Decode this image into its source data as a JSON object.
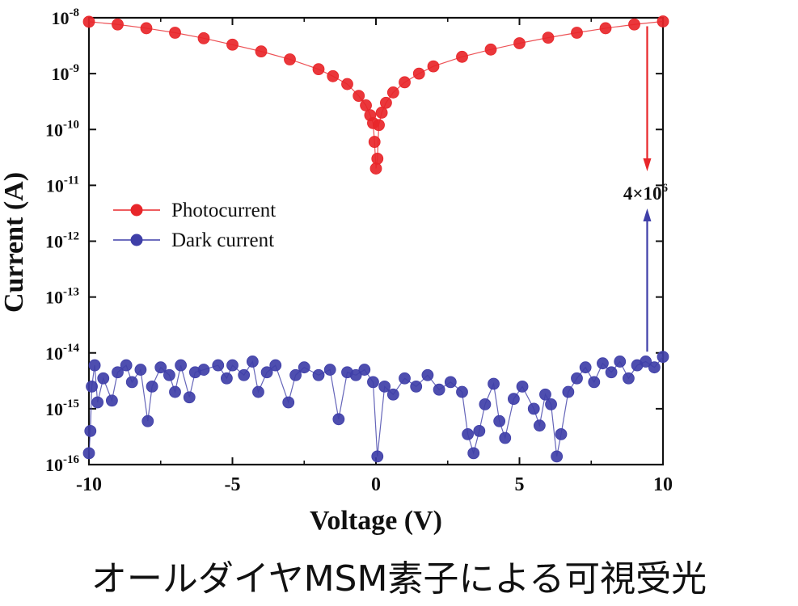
{
  "caption": "オールダイヤMSM素子による可視受光",
  "colors": {
    "photo": "#e8262a",
    "dark": "#3f3fa8",
    "axis": "#111111"
  },
  "chart_data": {
    "type": "scatter",
    "title": "",
    "xlabel": "Voltage (V)",
    "ylabel": "Current (A)",
    "xlim": [
      -10,
      10
    ],
    "ylim_log10": [
      -16,
      -8
    ],
    "yscale": "log",
    "x_ticks": [
      {
        "value": -10,
        "label": "-10"
      },
      {
        "value": -5,
        "label": "-5"
      },
      {
        "value": 0,
        "label": "0"
      },
      {
        "value": 5,
        "label": "5"
      },
      {
        "value": 10,
        "label": "10"
      }
    ],
    "y_ticks": [
      {
        "exp": -8,
        "base": "10",
        "sup": "-8"
      },
      {
        "exp": -9,
        "base": "10",
        "sup": "-9"
      },
      {
        "exp": -10,
        "base": "10",
        "sup": "-10"
      },
      {
        "exp": -11,
        "base": "10",
        "sup": "-11"
      },
      {
        "exp": -12,
        "base": "10",
        "sup": "-12"
      },
      {
        "exp": -13,
        "base": "10",
        "sup": "-13"
      },
      {
        "exp": -14,
        "base": "10",
        "sup": "-14"
      },
      {
        "exp": -15,
        "base": "10",
        "sup": "-15"
      },
      {
        "exp": -16,
        "base": "10",
        "sup": "-16"
      }
    ],
    "legend": {
      "placement": "middle-left",
      "entries": [
        {
          "name": "Photocurrent",
          "color": "#e8262a"
        },
        {
          "name": "Dark current",
          "color": "#3f3fa8"
        }
      ]
    },
    "series": [
      {
        "name": "Photocurrent",
        "color": "#e8262a",
        "points": [
          [
            -10,
            8.5e-09
          ],
          [
            -9,
            7.6e-09
          ],
          [
            -8,
            6.5e-09
          ],
          [
            -7,
            5.4e-09
          ],
          [
            -6,
            4.3e-09
          ],
          [
            -5,
            3.3e-09
          ],
          [
            -4,
            2.5e-09
          ],
          [
            -3,
            1.8e-09
          ],
          [
            -2,
            1.2e-09
          ],
          [
            -1.5,
            9e-10
          ],
          [
            -1,
            6.5e-10
          ],
          [
            -0.6,
            4e-10
          ],
          [
            -0.35,
            2.7e-10
          ],
          [
            -0.2,
            1.8e-10
          ],
          [
            -0.1,
            1.3e-10
          ],
          [
            -0.05,
            6e-11
          ],
          [
            0,
            2e-11
          ],
          [
            0.05,
            3e-11
          ],
          [
            0.1,
            1.2e-10
          ],
          [
            0.2,
            2e-10
          ],
          [
            0.35,
            3e-10
          ],
          [
            0.6,
            4.6e-10
          ],
          [
            1,
            7e-10
          ],
          [
            1.5,
            1e-09
          ],
          [
            2,
            1.35e-09
          ],
          [
            3,
            2e-09
          ],
          [
            4,
            2.7e-09
          ],
          [
            5,
            3.5e-09
          ],
          [
            6,
            4.4e-09
          ],
          [
            7,
            5.4e-09
          ],
          [
            8,
            6.5e-09
          ],
          [
            9,
            7.6e-09
          ],
          [
            10,
            8.6e-09
          ]
        ]
      },
      {
        "name": "Dark current",
        "color": "#3f3fa8",
        "points": [
          [
            -10,
            1.6e-16
          ],
          [
            -9.95,
            4e-16
          ],
          [
            -9.9,
            2.5e-15
          ],
          [
            -9.8,
            6e-15
          ],
          [
            -9.7,
            1.3e-15
          ],
          [
            -9.5,
            3.5e-15
          ],
          [
            -9.2,
            1.4e-15
          ],
          [
            -9,
            4.5e-15
          ],
          [
            -8.7,
            6e-15
          ],
          [
            -8.5,
            3e-15
          ],
          [
            -8.2,
            5e-15
          ],
          [
            -7.95,
            6e-16
          ],
          [
            -7.8,
            2.5e-15
          ],
          [
            -7.5,
            5.5e-15
          ],
          [
            -7.2,
            4e-15
          ],
          [
            -7,
            2e-15
          ],
          [
            -6.8,
            6e-15
          ],
          [
            -6.5,
            1.6e-15
          ],
          [
            -6.3,
            4.5e-15
          ],
          [
            -6,
            5e-15
          ],
          [
            -5.5,
            6e-15
          ],
          [
            -5.2,
            3.5e-15
          ],
          [
            -5,
            6e-15
          ],
          [
            -4.6,
            4e-15
          ],
          [
            -4.3,
            7e-15
          ],
          [
            -4.1,
            2e-15
          ],
          [
            -3.8,
            4.5e-15
          ],
          [
            -3.5,
            6e-15
          ],
          [
            -3.05,
            1.3e-15
          ],
          [
            -2.8,
            4e-15
          ],
          [
            -2.5,
            5.5e-15
          ],
          [
            -2,
            4e-15
          ],
          [
            -1.6,
            5e-15
          ],
          [
            -1.3,
            6.5e-16
          ],
          [
            -1,
            4.5e-15
          ],
          [
            -0.7,
            4e-15
          ],
          [
            -0.4,
            5e-15
          ],
          [
            -0.1,
            3e-15
          ],
          [
            0.05,
            1.4e-16
          ],
          [
            0.3,
            2.5e-15
          ],
          [
            0.6,
            1.8e-15
          ],
          [
            1,
            3.5e-15
          ],
          [
            1.4,
            2.5e-15
          ],
          [
            1.8,
            4e-15
          ],
          [
            2.2,
            2.2e-15
          ],
          [
            2.6,
            3e-15
          ],
          [
            3,
            2e-15
          ],
          [
            3.2,
            3.5e-16
          ],
          [
            3.4,
            1.6e-16
          ],
          [
            3.6,
            4e-16
          ],
          [
            3.8,
            1.2e-15
          ],
          [
            4.1,
            2.8e-15
          ],
          [
            4.3,
            6e-16
          ],
          [
            4.5,
            3e-16
          ],
          [
            4.8,
            1.5e-15
          ],
          [
            5.1,
            2.5e-15
          ],
          [
            5.5,
            1e-15
          ],
          [
            5.7,
            5e-16
          ],
          [
            5.9,
            1.8e-15
          ],
          [
            6.1,
            1.2e-15
          ],
          [
            6.3,
            1.4e-16
          ],
          [
            6.45,
            3.5e-16
          ],
          [
            6.7,
            2e-15
          ],
          [
            7,
            3.5e-15
          ],
          [
            7.3,
            5.5e-15
          ],
          [
            7.6,
            3e-15
          ],
          [
            7.9,
            6.5e-15
          ],
          [
            8.2,
            4.5e-15
          ],
          [
            8.5,
            7e-15
          ],
          [
            8.8,
            3.5e-15
          ],
          [
            9.1,
            6e-15
          ],
          [
            9.4,
            7e-15
          ],
          [
            9.7,
            5.5e-15
          ],
          [
            10,
            8.5e-15
          ]
        ]
      }
    ],
    "annotations": [
      {
        "label": "4×10",
        "sup": "6",
        "x": 9.45,
        "y_from": 8.6e-09,
        "y_to": 8.6e-15,
        "description": "ratio arrows between photocurrent and dark current at 9.45 V"
      }
    ]
  }
}
